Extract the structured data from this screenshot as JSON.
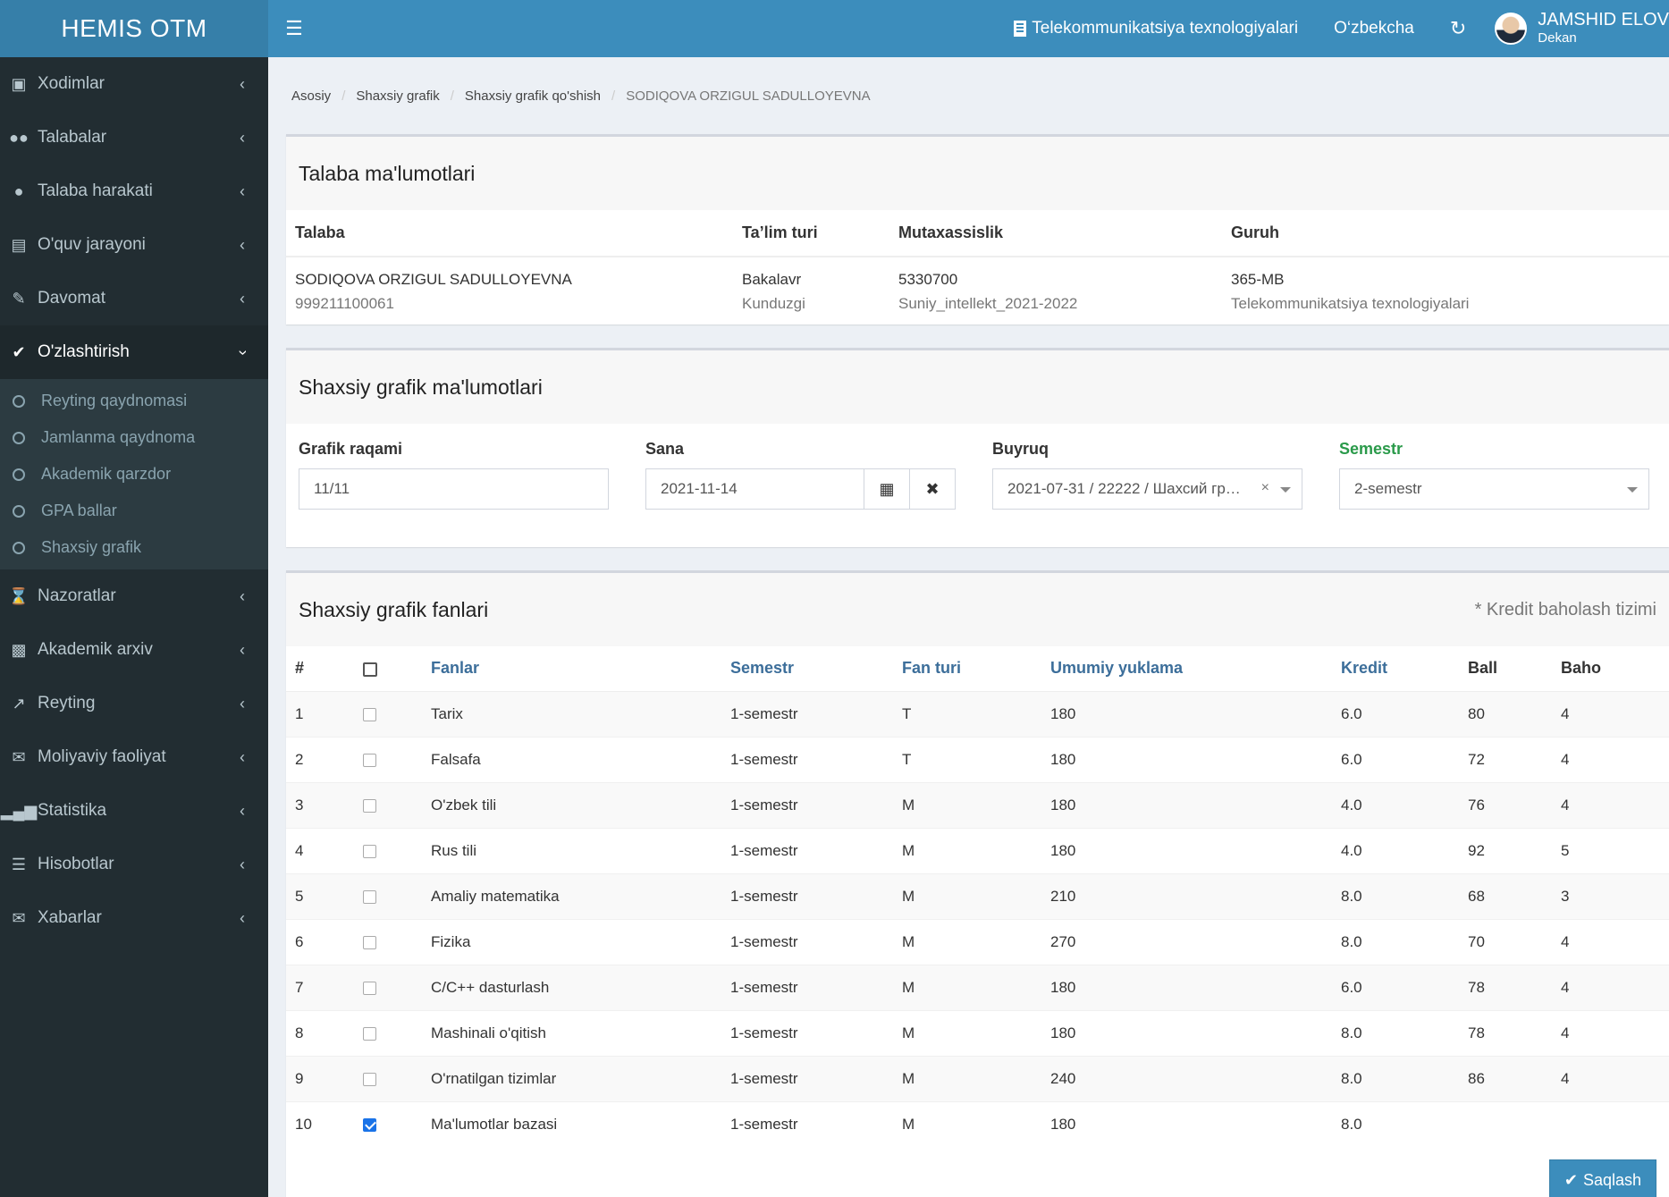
{
  "app": {
    "title": "HEMIS OTM"
  },
  "topbar": {
    "faculty": "Telekommunikatsiya texnologiyalari",
    "language": "O‘zbekcha",
    "user_name": "JAMSHID ELOV",
    "user_role": "Dekan"
  },
  "sidebar": {
    "items": [
      {
        "label": "Xodimlar",
        "icon": "briefcase-icon"
      },
      {
        "label": "Talabalar",
        "icon": "users-icon"
      },
      {
        "label": "Talaba harakati",
        "icon": "user-icon"
      },
      {
        "label": "O'quv jarayoni",
        "icon": "book-icon"
      },
      {
        "label": "Davomat",
        "icon": "edit-icon"
      },
      {
        "label": "O'zlashtirish",
        "icon": "check-icon"
      },
      {
        "label": "Nazoratlar",
        "icon": "hourglass-icon"
      },
      {
        "label": "Akademik arxiv",
        "icon": "archive-icon"
      },
      {
        "label": "Reyting",
        "icon": "line-chart-icon"
      },
      {
        "label": "Moliyaviy faoliyat",
        "icon": "envelope-icon"
      },
      {
        "label": "Statistika",
        "icon": "bar-chart-icon"
      },
      {
        "label": "Hisobotlar",
        "icon": "list-icon"
      },
      {
        "label": "Xabarlar",
        "icon": "envelope-icon"
      }
    ],
    "submenu": [
      "Reyting qaydnomasi",
      "Jamlanma qaydnoma",
      "Akademik qarzdor",
      "GPA ballar",
      "Shaxsiy grafik"
    ]
  },
  "breadcrumb": [
    "Asosiy",
    "Shaxsiy grafik",
    "Shaxsiy grafik qo'shish",
    "SODIQOVA ORZIGUL SADULLOYEVNA"
  ],
  "student_box": {
    "title": "Talaba ma'lumotlari",
    "headers": [
      "Talaba",
      "Ta’lim turi",
      "Mutaxassislik",
      "Guruh"
    ],
    "student_name": "SODIQOVA ORZIGUL SADULLOYEVNA",
    "student_id": "999211100061",
    "edu_type": "Bakalavr",
    "edu_form": "Kunduzgi",
    "spec_code": "5330700",
    "spec_name": "Suniy_intellekt_2021-2022",
    "group": "365-MB",
    "group_faculty": "Telekommunikatsiya texnologiyalari"
  },
  "grafik_box": {
    "title": "Shaxsiy grafik ma'lumotlari",
    "labels": {
      "number": "Grafik raqami",
      "date": "Sana",
      "order": "Buyruq",
      "semester": "Semestr"
    },
    "values": {
      "number": "11/11",
      "date": "2021-11-14",
      "order": "2021-07-31 / 22222 / Шахсий гр…",
      "semester": "2-semestr"
    }
  },
  "subjects_box": {
    "title": "Shaxsiy grafik fanlari",
    "note": "* Kredit baholash tizimi",
    "headers": [
      "#",
      "Fanlar",
      "Semestr",
      "Fan turi",
      "Umumiy yuklama",
      "Kredit",
      "Ball",
      "Baho"
    ],
    "rows": [
      {
        "n": "1",
        "name": "Tarix",
        "sem": "1-semestr",
        "type": "T",
        "load": "180",
        "credit": "6.0",
        "ball": "80",
        "baho": "4",
        "checked": false
      },
      {
        "n": "2",
        "name": "Falsafa",
        "sem": "1-semestr",
        "type": "T",
        "load": "180",
        "credit": "6.0",
        "ball": "72",
        "baho": "4",
        "checked": false
      },
      {
        "n": "3",
        "name": "O'zbek tili",
        "sem": "1-semestr",
        "type": "M",
        "load": "180",
        "credit": "4.0",
        "ball": "76",
        "baho": "4",
        "checked": false
      },
      {
        "n": "4",
        "name": "Rus tili",
        "sem": "1-semestr",
        "type": "M",
        "load": "180",
        "credit": "4.0",
        "ball": "92",
        "baho": "5",
        "checked": false
      },
      {
        "n": "5",
        "name": "Amaliy matematika",
        "sem": "1-semestr",
        "type": "M",
        "load": "210",
        "credit": "8.0",
        "ball": "68",
        "baho": "3",
        "checked": false
      },
      {
        "n": "6",
        "name": "Fizika",
        "sem": "1-semestr",
        "type": "M",
        "load": "270",
        "credit": "8.0",
        "ball": "70",
        "baho": "4",
        "checked": false
      },
      {
        "n": "7",
        "name": "C/C++ dasturlash",
        "sem": "1-semestr",
        "type": "M",
        "load": "180",
        "credit": "6.0",
        "ball": "78",
        "baho": "4",
        "checked": false
      },
      {
        "n": "8",
        "name": "Mashinali o'qitish",
        "sem": "1-semestr",
        "type": "M",
        "load": "180",
        "credit": "8.0",
        "ball": "78",
        "baho": "4",
        "checked": false
      },
      {
        "n": "9",
        "name": "O'rnatilgan tizimlar",
        "sem": "1-semestr",
        "type": "M",
        "load": "240",
        "credit": "8.0",
        "ball": "86",
        "baho": "4",
        "checked": false
      },
      {
        "n": "10",
        "name": "Ma'lumotlar bazasi",
        "sem": "1-semestr",
        "type": "M",
        "load": "180",
        "credit": "8.0",
        "ball": "",
        "baho": "",
        "checked": true
      }
    ],
    "save_label": "Saqlash"
  }
}
